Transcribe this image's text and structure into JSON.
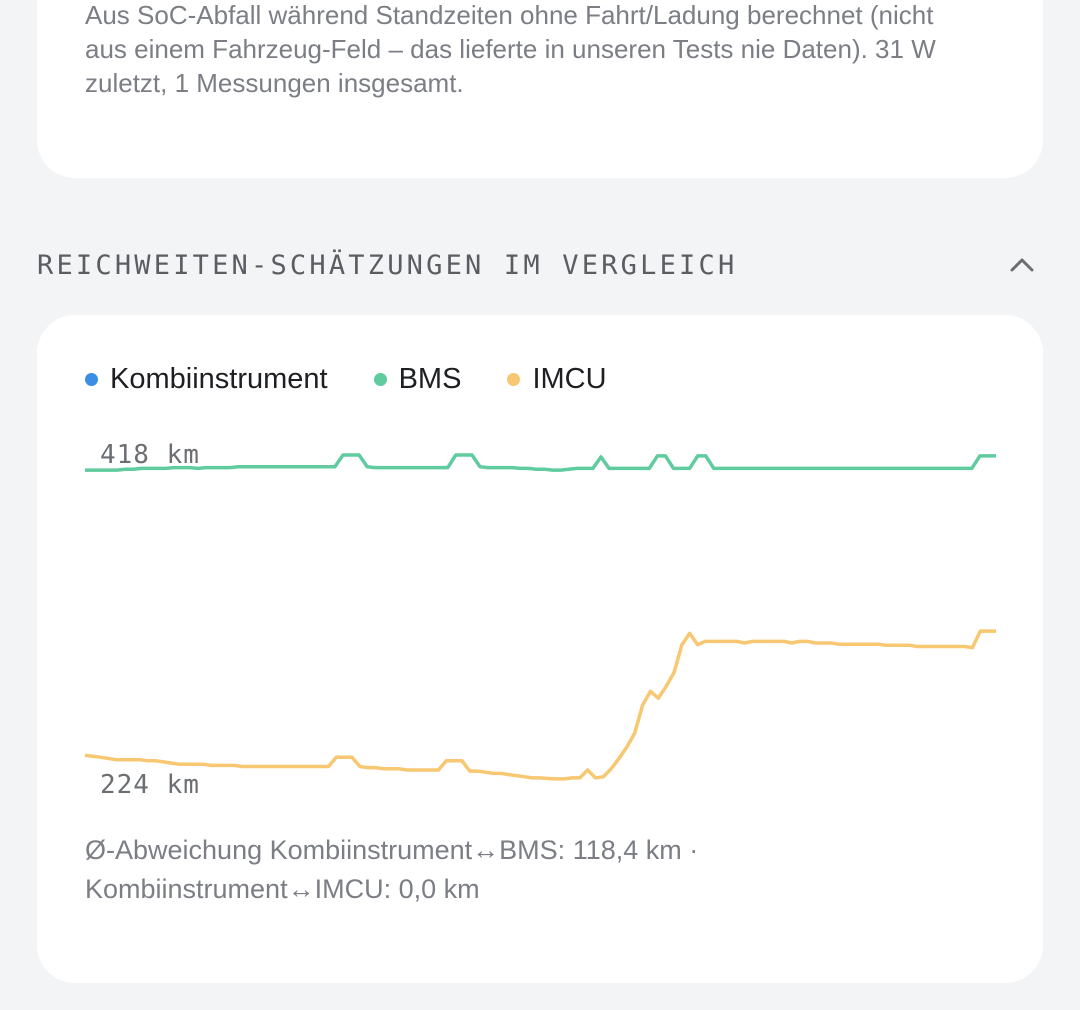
{
  "consumption_note": {
    "text": "Aus SoC-Abfall während Standzeiten ohne Fahrt/Ladung berechnet (nicht aus einem Fahrzeug-Feld – das lieferte in unseren Tests nie Daten). 31 W zuletzt, 1 Messungen insgesamt."
  },
  "section": {
    "title": "REICHWEITEN-SCHÄTZUNGEN IM VERGLEICH",
    "expanded": true,
    "toggle_icon": "chevron-up-icon"
  },
  "legend": [
    {
      "label": "Kombiinstrument",
      "color": "#3b8ee6"
    },
    {
      "label": "BMS",
      "color": "#5fcb9f"
    },
    {
      "label": "IMCU",
      "color": "#f7c772"
    }
  ],
  "chart_data": {
    "type": "line",
    "y_max_label": "418 km",
    "y_min_label": "224 km",
    "ylim": [
      224,
      418
    ],
    "series": [
      {
        "name": "BMS",
        "color": "#5fcb9f",
        "values": [
          409.1,
          409.1,
          409.1,
          409.1,
          409.1,
          409.6,
          409.6,
          410.1,
          410.1,
          410.1,
          410.1,
          410.6,
          410.6,
          410.6,
          410.1,
          410.6,
          410.6,
          410.6,
          410.6,
          411.1,
          411.1,
          411.1,
          411.1,
          411.1,
          411.1,
          411.1,
          411.1,
          411.1,
          411.1,
          411.1,
          411.1,
          411.1,
          418.0,
          418.0,
          418.0,
          411.1,
          410.6,
          410.6,
          410.6,
          410.6,
          410.6,
          410.6,
          410.6,
          410.6,
          410.6,
          410.6,
          418.0,
          418.0,
          418.0,
          411.1,
          410.6,
          410.6,
          410.6,
          410.6,
          410.1,
          410.1,
          409.6,
          409.6,
          409.1,
          409.1,
          409.6,
          410.1,
          410.1,
          410.1,
          416.9,
          410.1,
          410.1,
          410.1,
          410.1,
          410.1,
          410.1,
          417.5,
          417.5,
          410.1,
          410.1,
          410.1,
          417.5,
          417.5,
          410.1,
          410.1,
          410.1,
          410.1,
          410.1,
          410.1,
          410.1,
          410.1,
          410.1,
          410.1,
          410.1,
          410.1,
          410.1,
          410.1,
          410.1,
          410.1,
          410.1,
          410.1,
          410.1,
          410.1,
          410.1,
          410.1,
          410.1,
          410.1,
          410.1,
          410.1,
          410.1,
          410.1,
          410.1,
          410.1,
          410.1,
          410.1,
          410.1,
          417.5,
          417.5,
          417.5
        ]
      },
      {
        "name": "IMCU",
        "color": "#f7c772",
        "values": [
          241.4,
          240.9,
          240.3,
          239.6,
          238.9,
          238.9,
          238.9,
          238.9,
          238.2,
          238.2,
          237.6,
          236.9,
          236.2,
          236.2,
          236.2,
          236.2,
          235.5,
          235.5,
          235.5,
          235.5,
          234.9,
          234.9,
          234.9,
          234.9,
          234.9,
          234.9,
          234.9,
          234.9,
          234.9,
          234.9,
          234.9,
          234.9,
          240.3,
          240.3,
          240.3,
          234.9,
          234.2,
          234.2,
          233.5,
          233.5,
          233.5,
          232.8,
          232.8,
          232.8,
          232.8,
          232.8,
          238.2,
          238.2,
          238.2,
          232.2,
          232.2,
          231.5,
          230.8,
          230.8,
          230.1,
          229.5,
          228.8,
          228.2,
          228.2,
          227.8,
          227.6,
          227.6,
          228.2,
          228.2,
          232.8,
          228.2,
          228.8,
          233.5,
          239.6,
          246.4,
          254.5,
          270.9,
          279.1,
          275.0,
          282.0,
          290.1,
          306.5,
          313.2,
          306.5,
          308.4,
          308.4,
          308.4,
          308.4,
          308.4,
          307.5,
          308.4,
          308.4,
          308.4,
          308.4,
          308.4,
          307.5,
          308.4,
          308.4,
          307.5,
          307.5,
          307.5,
          306.8,
          306.8,
          306.8,
          306.8,
          306.8,
          306.8,
          306.1,
          306.1,
          306.1,
          306.1,
          305.4,
          305.4,
          305.4,
          305.4,
          305.4,
          305.4,
          305.4,
          304.7,
          314.5,
          314.5,
          314.5
        ]
      }
    ]
  },
  "footer": {
    "line1": "Ø-Abweichung Kombiinstrument↔BMS: 118,4 km ·",
    "line2": "Kombiinstrument↔IMCU: 0,0 km"
  }
}
